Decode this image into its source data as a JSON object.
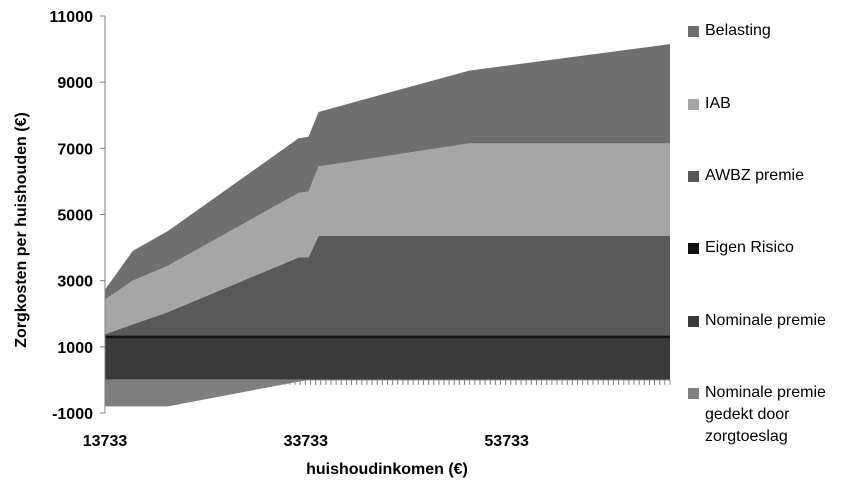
{
  "chart_data": {
    "type": "area",
    "stacked": true,
    "title": "",
    "xlabel": "huishoudinkomen (€)",
    "ylabel": "Zorgkosten per huishouden (€)",
    "xlim": [
      13733,
      70000
    ],
    "ylim": [
      -1000,
      11000
    ],
    "x_ticks": [
      "13733",
      "33733",
      "53733"
    ],
    "y_ticks": [
      "11000",
      "9000",
      "7000",
      "5000",
      "3000",
      "1000",
      "-1000"
    ],
    "grid": false,
    "legend_position": "right",
    "x": [
      13733,
      16500,
      20000,
      33000,
      34000,
      35000,
      50000,
      70000
    ],
    "series": [
      {
        "name": "Nominale premie gedekt door zorgtoeslag",
        "color": "#7f7f7f",
        "values": [
          -800,
          -800,
          -800,
          -50,
          0,
          0,
          0,
          0
        ]
      },
      {
        "name": "Nominale premie",
        "color": "#3a3a3a",
        "values": [
          1250,
          1250,
          1250,
          1250,
          1250,
          1250,
          1250,
          1250
        ]
      },
      {
        "name": "Eigen Risico",
        "color": "#111111",
        "values": [
          100,
          100,
          100,
          100,
          100,
          100,
          100,
          100
        ]
      },
      {
        "name": "AWBZ premie",
        "color": "#595959",
        "values": [
          30,
          330,
          700,
          2350,
          2350,
          3000,
          3000,
          3000
        ]
      },
      {
        "name": "IAB",
        "color": "#a6a6a6",
        "values": [
          1050,
          1320,
          1400,
          1950,
          2000,
          2100,
          2800,
          2800
        ]
      },
      {
        "name": "Belasting",
        "color": "#6f6f6f",
        "values": [
          300,
          900,
          1050,
          1650,
          1650,
          1650,
          2200,
          3000
        ]
      }
    ]
  }
}
